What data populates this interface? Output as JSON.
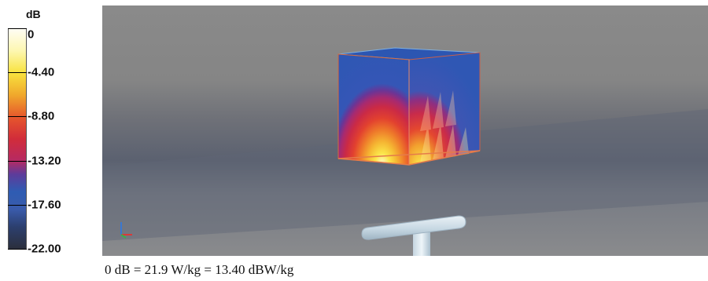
{
  "legend": {
    "unit": "dB",
    "ticks": [
      {
        "label": "0",
        "level": 0
      },
      {
        "label": "-4.40",
        "level": -4.4
      },
      {
        "label": "-8.80",
        "level": -8.8
      },
      {
        "label": "-13.20",
        "level": -13.2
      },
      {
        "label": "-17.60",
        "level": -17.6
      },
      {
        "label": "-22.00",
        "level": -22.0
      }
    ],
    "colors": [
      "#fefdf4",
      "#f8e23e",
      "#f0a82c",
      "#e6572c",
      "#d12c3a",
      "#b62a63",
      "#2e5cb3",
      "#2b2f3c"
    ]
  },
  "caption": "0 dB = 21.9 W/kg = 13.40 dBW/kg"
}
